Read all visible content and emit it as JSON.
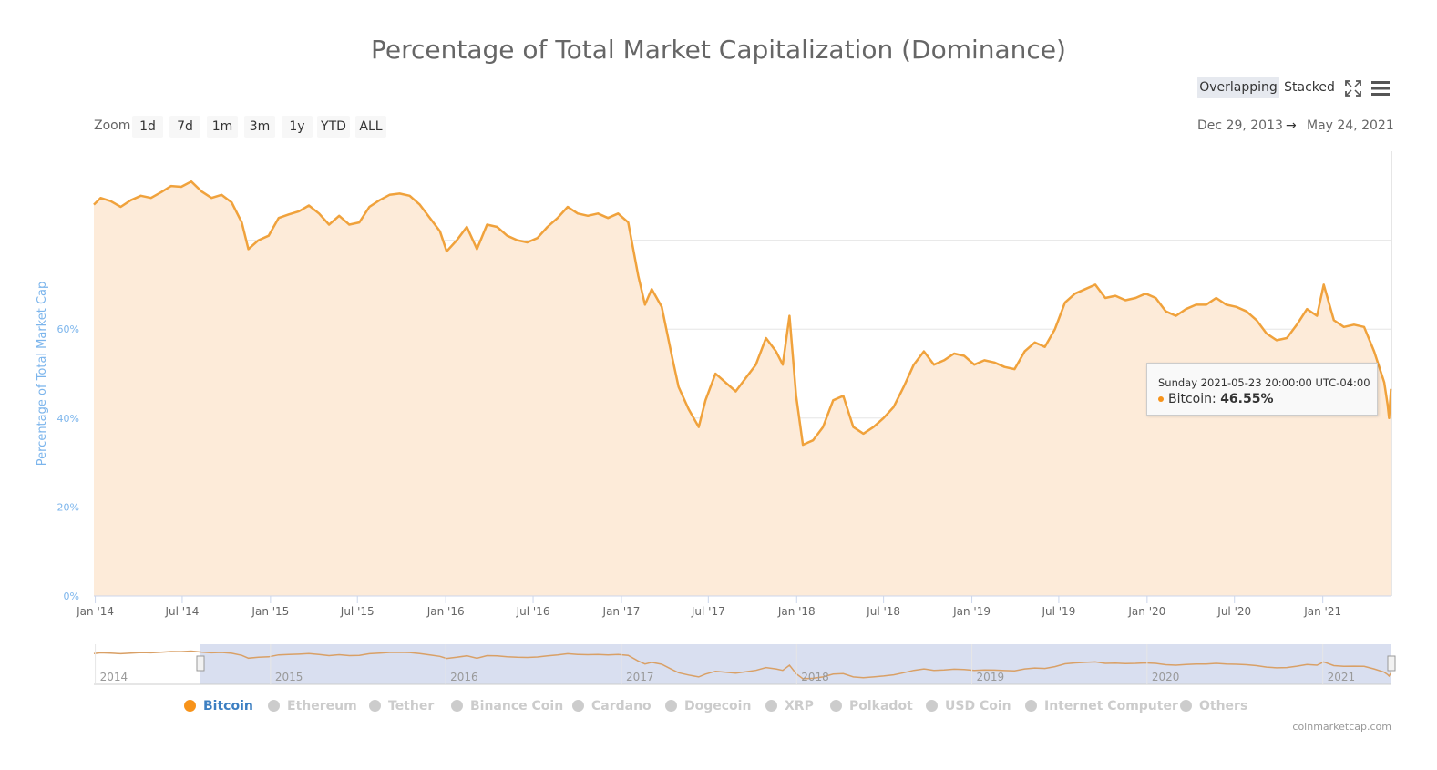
{
  "chart_data": {
    "type": "area",
    "title": "Percentage of Total Market Capitalization (Dominance)",
    "ylabel": "Percentage of Total Market Cap",
    "xlabel": "",
    "ylim": [
      0,
      100
    ],
    "y_ticks": [
      "0%",
      "20%",
      "40%",
      "60%"
    ],
    "x_ticks": [
      "Jan '14",
      "Jul '14",
      "Jan '15",
      "Jul '15",
      "Jan '16",
      "Jul '16",
      "Jan '17",
      "Jul '17",
      "Jan '18",
      "Jul '18",
      "Jan '19",
      "Jul '19",
      "Jan '20",
      "Jul '20",
      "Jan '21"
    ],
    "grid": true,
    "legend_position": "bottom",
    "series": [
      {
        "name": "Bitcoin",
        "color": "#f7931a",
        "points": [
          [
            "2013-12-29",
            88.0
          ],
          [
            "2014-01-12",
            89.5
          ],
          [
            "2014-02-02",
            88.8
          ],
          [
            "2014-02-23",
            87.5
          ],
          [
            "2014-03-16",
            89.0
          ],
          [
            "2014-04-06",
            90.0
          ],
          [
            "2014-04-27",
            89.5
          ],
          [
            "2014-05-18",
            90.8
          ],
          [
            "2014-06-08",
            92.2
          ],
          [
            "2014-06-29",
            92.0
          ],
          [
            "2014-07-20",
            93.2
          ],
          [
            "2014-08-10",
            91.0
          ],
          [
            "2014-08-31",
            89.5
          ],
          [
            "2014-09-21",
            90.2
          ],
          [
            "2014-10-12",
            88.5
          ],
          [
            "2014-11-02",
            84.0
          ],
          [
            "2014-11-16",
            78.0
          ],
          [
            "2014-12-07",
            80.0
          ],
          [
            "2014-12-28",
            81.0
          ],
          [
            "2015-01-18",
            85.0
          ],
          [
            "2015-02-08",
            85.8
          ],
          [
            "2015-03-01",
            86.5
          ],
          [
            "2015-03-22",
            87.8
          ],
          [
            "2015-04-12",
            86.0
          ],
          [
            "2015-05-03",
            83.5
          ],
          [
            "2015-05-24",
            85.5
          ],
          [
            "2015-06-14",
            83.5
          ],
          [
            "2015-07-05",
            84.0
          ],
          [
            "2015-07-26",
            87.5
          ],
          [
            "2015-08-16",
            89.0
          ],
          [
            "2015-09-06",
            90.2
          ],
          [
            "2015-09-27",
            90.5
          ],
          [
            "2015-10-18",
            90.0
          ],
          [
            "2015-11-08",
            88.0
          ],
          [
            "2015-11-29",
            85.0
          ],
          [
            "2015-12-20",
            82.0
          ],
          [
            "2016-01-03",
            77.5
          ],
          [
            "2016-01-24",
            80.0
          ],
          [
            "2016-02-14",
            83.0
          ],
          [
            "2016-03-06",
            78.0
          ],
          [
            "2016-03-27",
            83.5
          ],
          [
            "2016-04-17",
            83.0
          ],
          [
            "2016-05-08",
            81.0
          ],
          [
            "2016-05-29",
            80.0
          ],
          [
            "2016-06-19",
            79.5
          ],
          [
            "2016-07-10",
            80.5
          ],
          [
            "2016-07-31",
            83.0
          ],
          [
            "2016-08-21",
            85.0
          ],
          [
            "2016-09-11",
            87.5
          ],
          [
            "2016-10-02",
            86.0
          ],
          [
            "2016-10-23",
            85.5
          ],
          [
            "2016-11-13",
            86.0
          ],
          [
            "2016-12-04",
            85.0
          ],
          [
            "2016-12-25",
            86.0
          ],
          [
            "2017-01-15",
            84.0
          ],
          [
            "2017-02-05",
            72.0
          ],
          [
            "2017-02-19",
            65.5
          ],
          [
            "2017-03-05",
            69.0
          ],
          [
            "2017-03-26",
            65.0
          ],
          [
            "2017-04-16",
            54.0
          ],
          [
            "2017-04-30",
            47.0
          ],
          [
            "2017-05-21",
            42.0
          ],
          [
            "2017-06-11",
            38.0
          ],
          [
            "2017-06-25",
            44.0
          ],
          [
            "2017-07-16",
            50.0
          ],
          [
            "2017-08-06",
            48.0
          ],
          [
            "2017-08-27",
            46.0
          ],
          [
            "2017-09-17",
            49.0
          ],
          [
            "2017-10-08",
            52.0
          ],
          [
            "2017-10-29",
            58.0
          ],
          [
            "2017-11-19",
            55.0
          ],
          [
            "2017-12-03",
            52.0
          ],
          [
            "2017-12-17",
            63.0
          ],
          [
            "2017-12-31",
            45.0
          ],
          [
            "2018-01-14",
            34.0
          ],
          [
            "2018-02-04",
            35.0
          ],
          [
            "2018-02-25",
            38.0
          ],
          [
            "2018-03-18",
            44.0
          ],
          [
            "2018-04-08",
            45.0
          ],
          [
            "2018-04-29",
            38.0
          ],
          [
            "2018-05-20",
            36.5
          ],
          [
            "2018-06-10",
            38.0
          ],
          [
            "2018-07-01",
            40.0
          ],
          [
            "2018-07-22",
            42.5
          ],
          [
            "2018-08-12",
            47.0
          ],
          [
            "2018-09-02",
            52.0
          ],
          [
            "2018-09-23",
            55.0
          ],
          [
            "2018-10-14",
            52.0
          ],
          [
            "2018-11-04",
            53.0
          ],
          [
            "2018-11-25",
            54.5
          ],
          [
            "2018-12-16",
            54.0
          ],
          [
            "2019-01-06",
            52.0
          ],
          [
            "2019-01-27",
            53.0
          ],
          [
            "2019-02-17",
            52.5
          ],
          [
            "2019-03-10",
            51.5
          ],
          [
            "2019-03-31",
            51.0
          ],
          [
            "2019-04-21",
            55.0
          ],
          [
            "2019-05-12",
            57.0
          ],
          [
            "2019-06-02",
            56.0
          ],
          [
            "2019-06-23",
            60.0
          ],
          [
            "2019-07-14",
            66.0
          ],
          [
            "2019-08-04",
            68.0
          ],
          [
            "2019-08-25",
            69.0
          ],
          [
            "2019-09-15",
            70.0
          ],
          [
            "2019-10-06",
            67.0
          ],
          [
            "2019-10-27",
            67.5
          ],
          [
            "2019-11-17",
            66.5
          ],
          [
            "2019-12-08",
            67.0
          ],
          [
            "2019-12-29",
            68.0
          ],
          [
            "2020-01-19",
            67.0
          ],
          [
            "2020-02-09",
            64.0
          ],
          [
            "2020-03-01",
            63.0
          ],
          [
            "2020-03-22",
            64.5
          ],
          [
            "2020-04-12",
            65.5
          ],
          [
            "2020-05-03",
            65.5
          ],
          [
            "2020-05-24",
            67.0
          ],
          [
            "2020-06-14",
            65.5
          ],
          [
            "2020-07-05",
            65.0
          ],
          [
            "2020-07-26",
            64.0
          ],
          [
            "2020-08-16",
            62.0
          ],
          [
            "2020-09-06",
            59.0
          ],
          [
            "2020-09-27",
            57.5
          ],
          [
            "2020-10-18",
            58.0
          ],
          [
            "2020-11-08",
            61.0
          ],
          [
            "2020-11-29",
            64.5
          ],
          [
            "2020-12-20",
            63.0
          ],
          [
            "2021-01-03",
            70.0
          ],
          [
            "2021-01-24",
            62.0
          ],
          [
            "2021-02-14",
            60.5
          ],
          [
            "2021-03-07",
            61.0
          ],
          [
            "2021-03-28",
            60.5
          ],
          [
            "2021-04-18",
            55.0
          ],
          [
            "2021-05-09",
            48.0
          ],
          [
            "2021-05-16",
            43.0
          ],
          [
            "2021-05-19",
            40.0
          ],
          [
            "2021-05-23",
            46.55
          ]
        ]
      }
    ]
  },
  "controls": {
    "overlapping_label": "Overlapping",
    "stacked_label": "Stacked",
    "fullscreen_icon": "fullscreen-icon",
    "menu_icon": "hamburger-menu-icon"
  },
  "zoom": {
    "label": "Zoom",
    "buttons": [
      "1d",
      "7d",
      "1m",
      "3m",
      "1y",
      "YTD",
      "ALL"
    ]
  },
  "range": {
    "from": "Dec 29, 2013",
    "arrow": "→",
    "to": "May 24, 2021"
  },
  "tooltip": {
    "date": "Sunday 2021-05-23 20:00:00 UTC-04:00",
    "series": "Bitcoin",
    "value": "46.55%"
  },
  "navigator": {
    "year_labels": [
      "2014",
      "2015",
      "2016",
      "2017",
      "2018",
      "2019",
      "2020",
      "2021"
    ]
  },
  "legend": {
    "items": [
      {
        "label": "Bitcoin",
        "active": true,
        "color": "#f7931a"
      },
      {
        "label": "Ethereum",
        "active": false
      },
      {
        "label": "Tether",
        "active": false
      },
      {
        "label": "Binance Coin",
        "active": false
      },
      {
        "label": "Cardano",
        "active": false
      },
      {
        "label": "Dogecoin",
        "active": false
      },
      {
        "label": "XRP",
        "active": false
      },
      {
        "label": "Polkadot",
        "active": false
      },
      {
        "label": "USD Coin",
        "active": false
      },
      {
        "label": "Internet Computer",
        "active": false
      },
      {
        "label": "Others",
        "active": false
      }
    ]
  },
  "credit": "coinmarketcap.com"
}
